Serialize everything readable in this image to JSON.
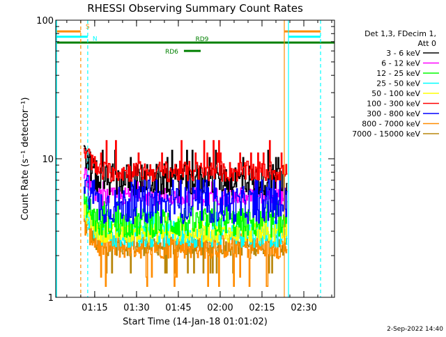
{
  "chart_data": {
    "type": "line",
    "title": "RHESSI Observing Summary Count Rates",
    "xlabel": "Start Time (14-Jan-18 01:01:02)",
    "ylabel": "Count Rate (s⁻¹ detector⁻¹)",
    "y_scale": "log",
    "ylim": [
      1,
      100
    ],
    "xlim": [
      "01:01:02",
      "02:41:00"
    ],
    "x_ticks": [
      "01:15",
      "01:30",
      "01:45",
      "02:00",
      "02:15",
      "02:30"
    ],
    "y_ticks": [
      "1",
      "10",
      "100"
    ],
    "grid": false,
    "legend_position": "top-right",
    "legend_header": [
      "Det 1,3, FDecim 1,",
      "Att 0"
    ],
    "series": [
      {
        "name": "3 - 6 keV",
        "color": "#000000",
        "band": [
          5.4,
          9.2
        ],
        "spikes": [
          10.2,
          11.5
        ]
      },
      {
        "name": "6 - 12 keV",
        "color": "#ff00ff",
        "band": [
          4.6,
          6.2
        ],
        "spikes": [
          6.8
        ]
      },
      {
        "name": "12 - 25 keV",
        "color": "#00ff00",
        "band": [
          2.7,
          4.4
        ],
        "spikes": [
          4.9
        ]
      },
      {
        "name": "25 - 50 keV",
        "color": "#00ffff",
        "band": [
          2.3,
          3.6
        ],
        "spikes": [
          4.1
        ]
      },
      {
        "name": "50 - 100 keV",
        "color": "#ffff00",
        "band": [
          2.5,
          3.4
        ],
        "spikes": [
          3.8
        ]
      },
      {
        "name": "100 - 300 keV",
        "color": "#ff0000",
        "band": [
          6.8,
          9.6
        ],
        "spikes": [
          11.0,
          13.5
        ]
      },
      {
        "name": "300 - 800 keV",
        "color": "#0000ff",
        "band": [
          3.4,
          6.3
        ],
        "spikes": [
          7.0
        ]
      },
      {
        "name": "800 - 7000 keV",
        "color": "#ff8c00",
        "band": [
          1.9,
          2.9
        ],
        "spikes": [
          1.4,
          1.2
        ]
      },
      {
        "name": "7000 - 15000 keV",
        "color": "#b8860b",
        "band": [
          2.0,
          2.8
        ],
        "spikes": [
          1.5
        ]
      }
    ],
    "data_window": {
      "start": "01:11:00",
      "end": "02:23:50"
    },
    "annotations": [
      {
        "label": "S",
        "color": "#ff8c00",
        "y": 83,
        "x_start": "01:01:02",
        "x_end": "01:10:00",
        "marker": "01:10:00"
      },
      {
        "label": "N",
        "color": "#00ffff",
        "y": 76,
        "x_start": "01:01:02",
        "x_end": "01:12:30",
        "marker": "01:12:30"
      },
      {
        "label": "RD9",
        "color": "#008000",
        "y": 69,
        "x_start": "01:01:02",
        "x_end": "02:41:00"
      },
      {
        "label": "RD6",
        "color": "#008000",
        "y": 60,
        "x_start": "01:47:00",
        "x_end": "01:53:00"
      }
    ],
    "post_gap_lines": [
      {
        "color": "#ff8c00",
        "y": 83,
        "x_start": "02:23:00",
        "x_end": "02:36:00"
      },
      {
        "color": "#00ffff",
        "y": 76,
        "x_start": "02:24:30",
        "x_end": "02:36:00"
      }
    ],
    "vertical_markers": [
      {
        "color": "#ff8c00",
        "style": "dashed",
        "x": "01:10:00"
      },
      {
        "color": "#00ffff",
        "style": "dashed",
        "x": "01:12:30"
      },
      {
        "color": "#ff8c00",
        "style": "solid",
        "x": "02:23:00"
      },
      {
        "color": "#00ffff",
        "style": "solid",
        "x": "02:24:30"
      },
      {
        "color": "#00ffff",
        "style": "dashed",
        "x": "02:36:00"
      }
    ],
    "left_cyan_line_x": "01:01:02",
    "footer_date": "2-Sep-2022 14:40"
  }
}
